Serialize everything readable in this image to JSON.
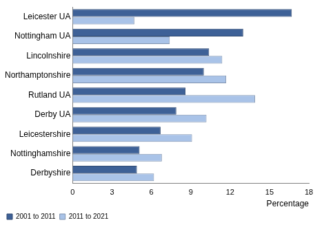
{
  "chart_data": {
    "type": "bar",
    "orientation": "horizontal",
    "categories": [
      "Leicester UA",
      "Nottingham UA",
      "Lincolnshire",
      "Northamptonshire",
      "Rutland UA",
      "Derby UA",
      "Leicestershire",
      "Nottinghamshire",
      "Derbyshire"
    ],
    "series": [
      {
        "name": "2001 to 2011",
        "color": "#3e6197",
        "values": [
          16.7,
          13.0,
          10.4,
          10.0,
          8.6,
          7.9,
          6.7,
          5.1,
          4.9
        ]
      },
      {
        "name": "2011 to 2021",
        "color": "#a9c3e8",
        "values": [
          4.7,
          7.4,
          11.4,
          11.7,
          13.9,
          10.2,
          9.1,
          6.8,
          6.2
        ]
      }
    ],
    "x_label": "Percentage",
    "xlim": [
      0,
      18
    ],
    "xticks": [
      0,
      3,
      6,
      9,
      12,
      15,
      18
    ],
    "grid": false,
    "legend": "bottom-left"
  }
}
